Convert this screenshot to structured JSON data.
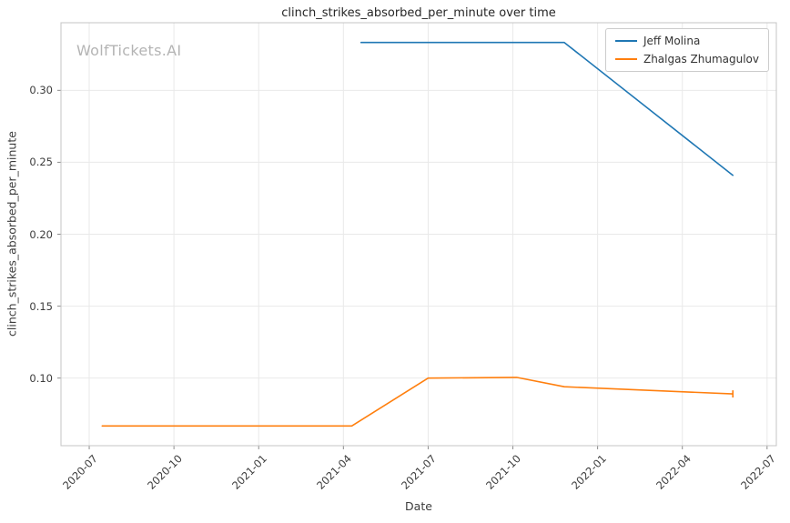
{
  "watermark": {
    "text": "WolfTickets.AI",
    "color": "#b4b4b4"
  },
  "chart_data": {
    "type": "line",
    "title": "clinch_strikes_absorbed_per_minute over time",
    "xlabel": "Date",
    "ylabel": "clinch_strikes_absorbed_per_minute",
    "grid": true,
    "legend_position": "upper right",
    "x_ticks": [
      "2020-07",
      "2020-10",
      "2021-01",
      "2021-04",
      "2021-07",
      "2021-10",
      "2022-01",
      "2022-04",
      "2022-07"
    ],
    "y_ticks": [
      0.1,
      0.15,
      0.2,
      0.25,
      0.3
    ],
    "xlim": [
      "2020-06-01",
      "2022-07-11"
    ],
    "ylim": [
      0.053,
      0.347
    ],
    "colors": {
      "grid": "#e9e9e9",
      "spine": "#c4c4c4",
      "tick": "#8c8c8c",
      "text": "#3c3c3c"
    },
    "series": [
      {
        "name": "Jeff Molina",
        "color": "#1f77b4",
        "points": [
          {
            "x": "2021-04-20",
            "y": 0.3333
          },
          {
            "x": "2021-11-26",
            "y": 0.3333
          },
          {
            "x": "2022-05-25",
            "y": 0.241
          }
        ]
      },
      {
        "name": "Zhalgas Zhumagulov",
        "color": "#ff7f0e",
        "points": [
          {
            "x": "2020-07-15",
            "y": 0.0667
          },
          {
            "x": "2021-04-10",
            "y": 0.0667
          },
          {
            "x": "2021-07-01",
            "y": 0.1
          },
          {
            "x": "2021-10-05",
            "y": 0.1005
          },
          {
            "x": "2021-11-26",
            "y": 0.094
          },
          {
            "x": "2022-05-25",
            "y": 0.089
          }
        ],
        "end_cap": {
          "low": 0.0865,
          "high": 0.0915
        }
      }
    ]
  }
}
